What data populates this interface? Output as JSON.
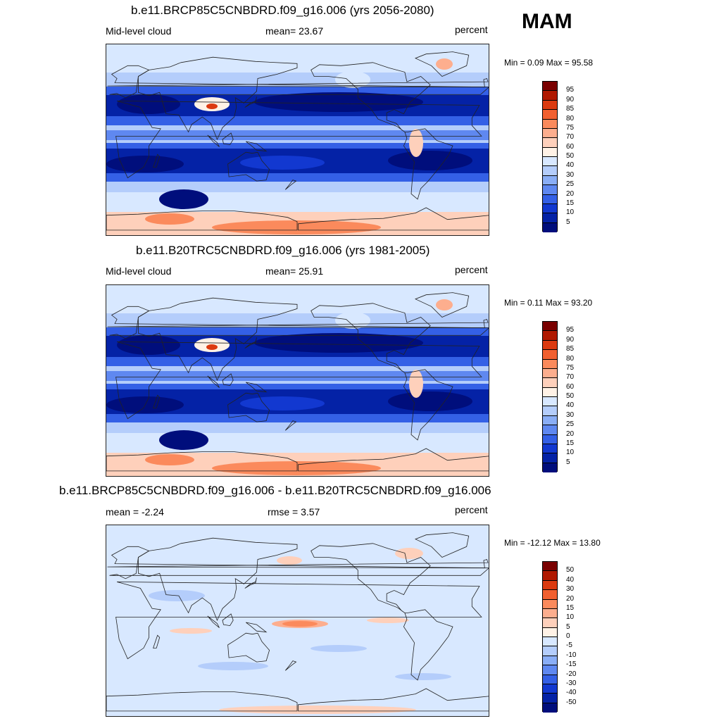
{
  "season": "MAM",
  "panels": [
    {
      "title": "b.e11.BRCP85C5CNBDRD.f09_g16.006 (yrs 2056-2080)",
      "left_label": "Mid-level cloud",
      "center_label": "mean=  23.67",
      "units": "percent",
      "minmax": "Min =   0.09 Max =  95.58",
      "colorbar_labels": [
        "95",
        "90",
        "85",
        "80",
        "75",
        "70",
        "60",
        "50",
        "40",
        "30",
        "25",
        "20",
        "15",
        "10",
        "5"
      ],
      "colorbar_colors": [
        "#7a0000",
        "#b01800",
        "#dc3a10",
        "#f26030",
        "#fb8a5c",
        "#fdae8e",
        "#fed0bb",
        "#fff2e6",
        "#d8e8ff",
        "#b4cdfb",
        "#8aaef6",
        "#5f88f0",
        "#3460e6",
        "#1238d0",
        "#0422a6",
        "#000e7c"
      ],
      "map_mode": "cloud",
      "map_variant": 0
    },
    {
      "title": "b.e11.B20TRC5CNBDRD.f09_g16.006 (yrs 1981-2005)",
      "left_label": "Mid-level cloud",
      "center_label": "mean=  25.91",
      "units": "percent",
      "minmax": "Min =   0.11 Max =  93.20",
      "colorbar_labels": [
        "95",
        "90",
        "85",
        "80",
        "75",
        "70",
        "60",
        "50",
        "40",
        "30",
        "25",
        "20",
        "15",
        "10",
        "5"
      ],
      "colorbar_colors": [
        "#7a0000",
        "#b01800",
        "#dc3a10",
        "#f26030",
        "#fb8a5c",
        "#fdae8e",
        "#fed0bb",
        "#fff2e6",
        "#d8e8ff",
        "#b4cdfb",
        "#8aaef6",
        "#5f88f0",
        "#3460e6",
        "#1238d0",
        "#0422a6",
        "#000e7c"
      ],
      "map_mode": "cloud",
      "map_variant": 1
    },
    {
      "title": "b.e11.BRCP85C5CNBDRD.f09_g16.006 - b.e11.B20TRC5CNBDRD.f09_g16.006",
      "left_label": "mean =  -2.24",
      "center_label": "rmse =   3.57",
      "units": "percent",
      "minmax": "Min = -12.12 Max =  13.80",
      "colorbar_labels": [
        "50",
        "40",
        "30",
        "20",
        "15",
        "10",
        "5",
        "0",
        "-5",
        "-10",
        "-15",
        "-20",
        "-30",
        "-40",
        "-50"
      ],
      "colorbar_colors": [
        "#7a0000",
        "#b01800",
        "#dc3a10",
        "#f26030",
        "#fb8a5c",
        "#fdae8e",
        "#fed0bb",
        "#fff2e6",
        "#d8e8ff",
        "#b4cdfb",
        "#8aaef6",
        "#5f88f0",
        "#3460e6",
        "#1238d0",
        "#0422a6",
        "#000e7c"
      ],
      "map_mode": "diff",
      "map_variant": 2
    }
  ]
}
